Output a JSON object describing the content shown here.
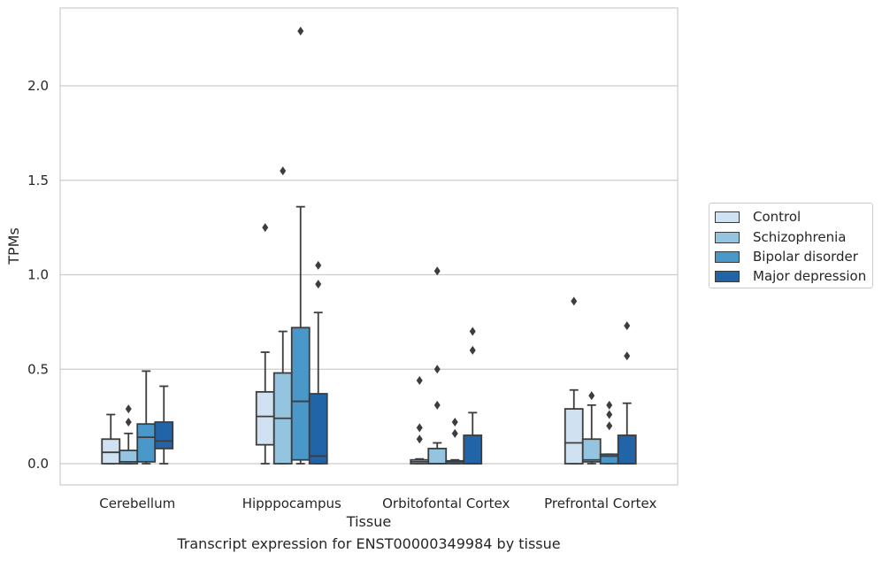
{
  "chart_data": {
    "type": "box",
    "title": "",
    "caption": "Transcript expression for ENST00000349984 by tissue",
    "xlabel": "Tissue",
    "ylabel": "TPMs",
    "ylim": [
      -0.11,
      2.42
    ],
    "yticks": [
      "0.0",
      "0.5",
      "1.0",
      "1.5",
      "2.0"
    ],
    "categories": [
      "Cerebellum",
      "Hipppocampus",
      "Orbitofontal Cortex",
      "Prefrontal Cortex"
    ],
    "grid": "horizontal",
    "legend_position": "right",
    "series": [
      {
        "name": "Control",
        "color": "#d0e1f2",
        "boxes": [
          {
            "whislo": 0.0,
            "q1": 0.0,
            "med": 0.06,
            "q3": 0.13,
            "whishi": 0.26,
            "fliers": []
          },
          {
            "whislo": 0.0,
            "q1": 0.1,
            "med": 0.25,
            "q3": 0.38,
            "whishi": 0.59,
            "fliers": [
              1.25
            ]
          },
          {
            "whislo": 0.0,
            "q1": 0.0,
            "med": 0.01,
            "q3": 0.02,
            "whishi": 0.025,
            "fliers": [
              0.44,
              0.19,
              0.13
            ]
          },
          {
            "whislo": 0.0,
            "q1": 0.0,
            "med": 0.11,
            "q3": 0.29,
            "whishi": 0.39,
            "fliers": [
              0.86
            ]
          }
        ]
      },
      {
        "name": "Schizophrenia",
        "color": "#94c4df",
        "boxes": [
          {
            "whislo": 0.0,
            "q1": 0.0,
            "med": 0.01,
            "q3": 0.07,
            "whishi": 0.16,
            "fliers": [
              0.29,
              0.22
            ]
          },
          {
            "whislo": 0.0,
            "q1": 0.0,
            "med": 0.24,
            "q3": 0.48,
            "whishi": 0.7,
            "fliers": [
              1.55
            ]
          },
          {
            "whislo": 0.0,
            "q1": 0.0,
            "med": 0.0,
            "q3": 0.08,
            "whishi": 0.11,
            "fliers": [
              1.02,
              0.5,
              0.31
            ]
          },
          {
            "whislo": 0.0,
            "q1": 0.01,
            "med": 0.02,
            "q3": 0.13,
            "whishi": 0.31,
            "fliers": [
              0.36
            ]
          }
        ]
      },
      {
        "name": "Bipolar disorder",
        "color": "#4a98c9",
        "boxes": [
          {
            "whislo": 0.0,
            "q1": 0.01,
            "med": 0.14,
            "q3": 0.21,
            "whishi": 0.49,
            "fliers": []
          },
          {
            "whislo": 0.0,
            "q1": 0.02,
            "med": 0.33,
            "q3": 0.72,
            "whishi": 1.36,
            "fliers": [
              2.29
            ]
          },
          {
            "whislo": 0.0,
            "q1": 0.0,
            "med": 0.01,
            "q3": 0.015,
            "whishi": 0.02,
            "fliers": [
              0.22,
              0.16
            ]
          },
          {
            "whislo": 0.0,
            "q1": 0.0,
            "med": 0.04,
            "q3": 0.05,
            "whishi": 0.05,
            "fliers": [
              0.31,
              0.26,
              0.2
            ]
          }
        ]
      },
      {
        "name": "Major depression",
        "color": "#2264a8",
        "boxes": [
          {
            "whislo": 0.0,
            "q1": 0.08,
            "med": 0.12,
            "q3": 0.22,
            "whishi": 0.41,
            "fliers": []
          },
          {
            "whislo": 0.0,
            "q1": 0.0,
            "med": 0.04,
            "q3": 0.37,
            "whishi": 0.8,
            "fliers": [
              1.05,
              0.95
            ]
          },
          {
            "whislo": 0.0,
            "q1": 0.0,
            "med": 0.0,
            "q3": 0.15,
            "whishi": 0.27,
            "fliers": [
              0.7,
              0.6
            ]
          },
          {
            "whislo": 0.0,
            "q1": 0.0,
            "med": 0.0,
            "q3": 0.15,
            "whishi": 0.32,
            "fliers": [
              0.73,
              0.57
            ]
          }
        ]
      }
    ]
  }
}
